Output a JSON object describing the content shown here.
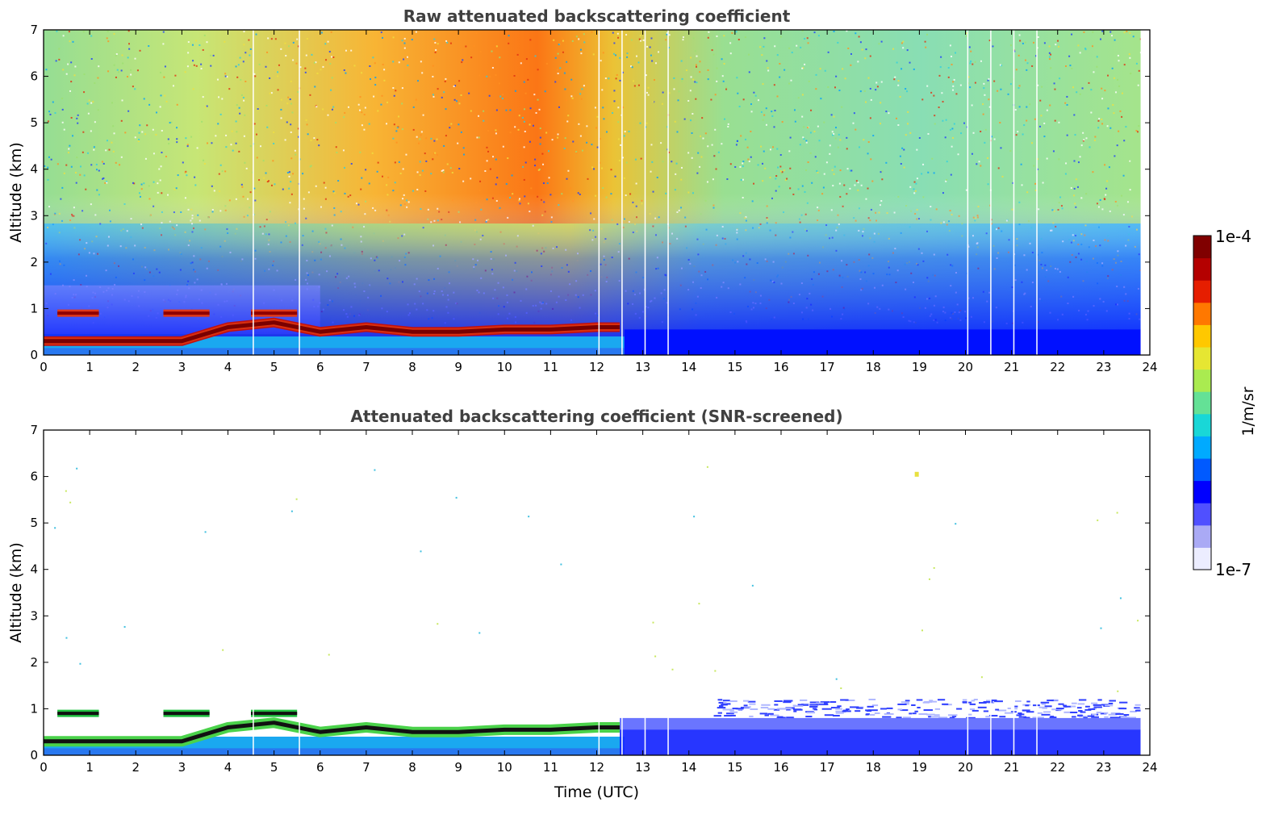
{
  "chart_data": [
    {
      "type": "heatmap",
      "title": "Raw attenuated backscattering coefficient",
      "xlabel": "",
      "ylabel": "Altitude (km)",
      "xlim": [
        0,
        24
      ],
      "ylim": [
        0,
        7
      ],
      "xticks": [
        "0",
        "1",
        "2",
        "3",
        "4",
        "5",
        "6",
        "7",
        "8",
        "9",
        "10",
        "11",
        "12",
        "13",
        "14",
        "15",
        "16",
        "17",
        "18",
        "19",
        "20",
        "21",
        "22",
        "23",
        "24"
      ],
      "yticks": [
        "0",
        "1",
        "2",
        "3",
        "4",
        "5",
        "6",
        "7"
      ],
      "data_end_hour": 23.8,
      "gap_lines_hours": [
        4.55,
        5.55,
        12.05,
        12.55,
        13.05,
        13.55,
        20.05,
        20.55,
        21.05,
        21.55
      ],
      "layers": [
        {
          "feature": "aerosol layer top (red band)",
          "altitude_km_by_hour": [
            [
              0,
              0.3
            ],
            [
              1,
              0.3
            ],
            [
              2,
              0.3
            ],
            [
              3,
              0.3
            ],
            [
              4,
              0.6
            ],
            [
              5,
              0.7
            ],
            [
              6,
              0.5
            ],
            [
              7,
              0.6
            ],
            [
              8,
              0.5
            ],
            [
              9,
              0.5
            ],
            [
              10,
              0.55
            ],
            [
              11,
              0.55
            ],
            [
              12,
              0.6
            ],
            [
              12.5,
              0.6
            ]
          ]
        },
        {
          "feature": "cloud at ~0.9 km",
          "span_hours": [
            [
              0.3,
              1.2
            ],
            [
              2.6,
              3.6
            ],
            [
              4.5,
              5.5
            ]
          ],
          "altitude_km": 0.9
        }
      ],
      "background": "noisy, high (yellow-red) around 6-12 h above 3 km, low (blue) below 1 km after 12 h"
    },
    {
      "type": "heatmap",
      "title": "Attenuated backscattering coefficient (SNR-screened)",
      "xlabel": "Time (UTC)",
      "ylabel": "Altitude (km)",
      "xlim": [
        0,
        24
      ],
      "ylim": [
        0,
        7
      ],
      "xticks": [
        "0",
        "1",
        "2",
        "3",
        "4",
        "5",
        "6",
        "7",
        "8",
        "9",
        "10",
        "11",
        "12",
        "13",
        "14",
        "15",
        "16",
        "17",
        "18",
        "19",
        "20",
        "21",
        "22",
        "23",
        "24"
      ],
      "yticks": [
        "0",
        "1",
        "2",
        "3",
        "4",
        "5",
        "6",
        "7"
      ],
      "data_end_hour": 23.8,
      "gap_lines_hours": [
        4.55,
        5.55,
        12.05,
        12.55,
        13.05,
        13.55,
        20.05,
        20.55,
        21.05,
        21.55
      ],
      "layers": [
        {
          "feature": "aerosol layer top (black band)",
          "altitude_km_by_hour": [
            [
              0,
              0.3
            ],
            [
              1,
              0.3
            ],
            [
              2,
              0.3
            ],
            [
              3,
              0.3
            ],
            [
              4,
              0.6
            ],
            [
              5,
              0.7
            ],
            [
              6,
              0.5
            ],
            [
              7,
              0.6
            ],
            [
              8,
              0.5
            ],
            [
              9,
              0.5
            ],
            [
              10,
              0.55
            ],
            [
              11,
              0.55
            ],
            [
              12,
              0.6
            ],
            [
              12.5,
              0.6
            ]
          ]
        },
        {
          "feature": "cloud at ~0.9 km",
          "span_hours": [
            [
              0.3,
              1.2
            ],
            [
              2.6,
              3.6
            ],
            [
              4.5,
              5.5
            ]
          ],
          "altitude_km": 0.9
        },
        {
          "feature": "blue boundary layer",
          "span_hours": [
            [
              12.5,
              23.8
            ]
          ],
          "top_km": 0.8
        }
      ]
    }
  ],
  "colorbar": {
    "label": "1/m/sr",
    "max_label": "1e-4",
    "min_label": "1e-7",
    "scale": "log",
    "colors": [
      "#ecedff",
      "#aaaaf5",
      "#5050ff",
      "#0000ff",
      "#005aff",
      "#00aaff",
      "#19d7d7",
      "#64e196",
      "#aaeb50",
      "#e6e632",
      "#ffc800",
      "#ff7800",
      "#e61e00",
      "#b40000",
      "#800000"
    ]
  }
}
